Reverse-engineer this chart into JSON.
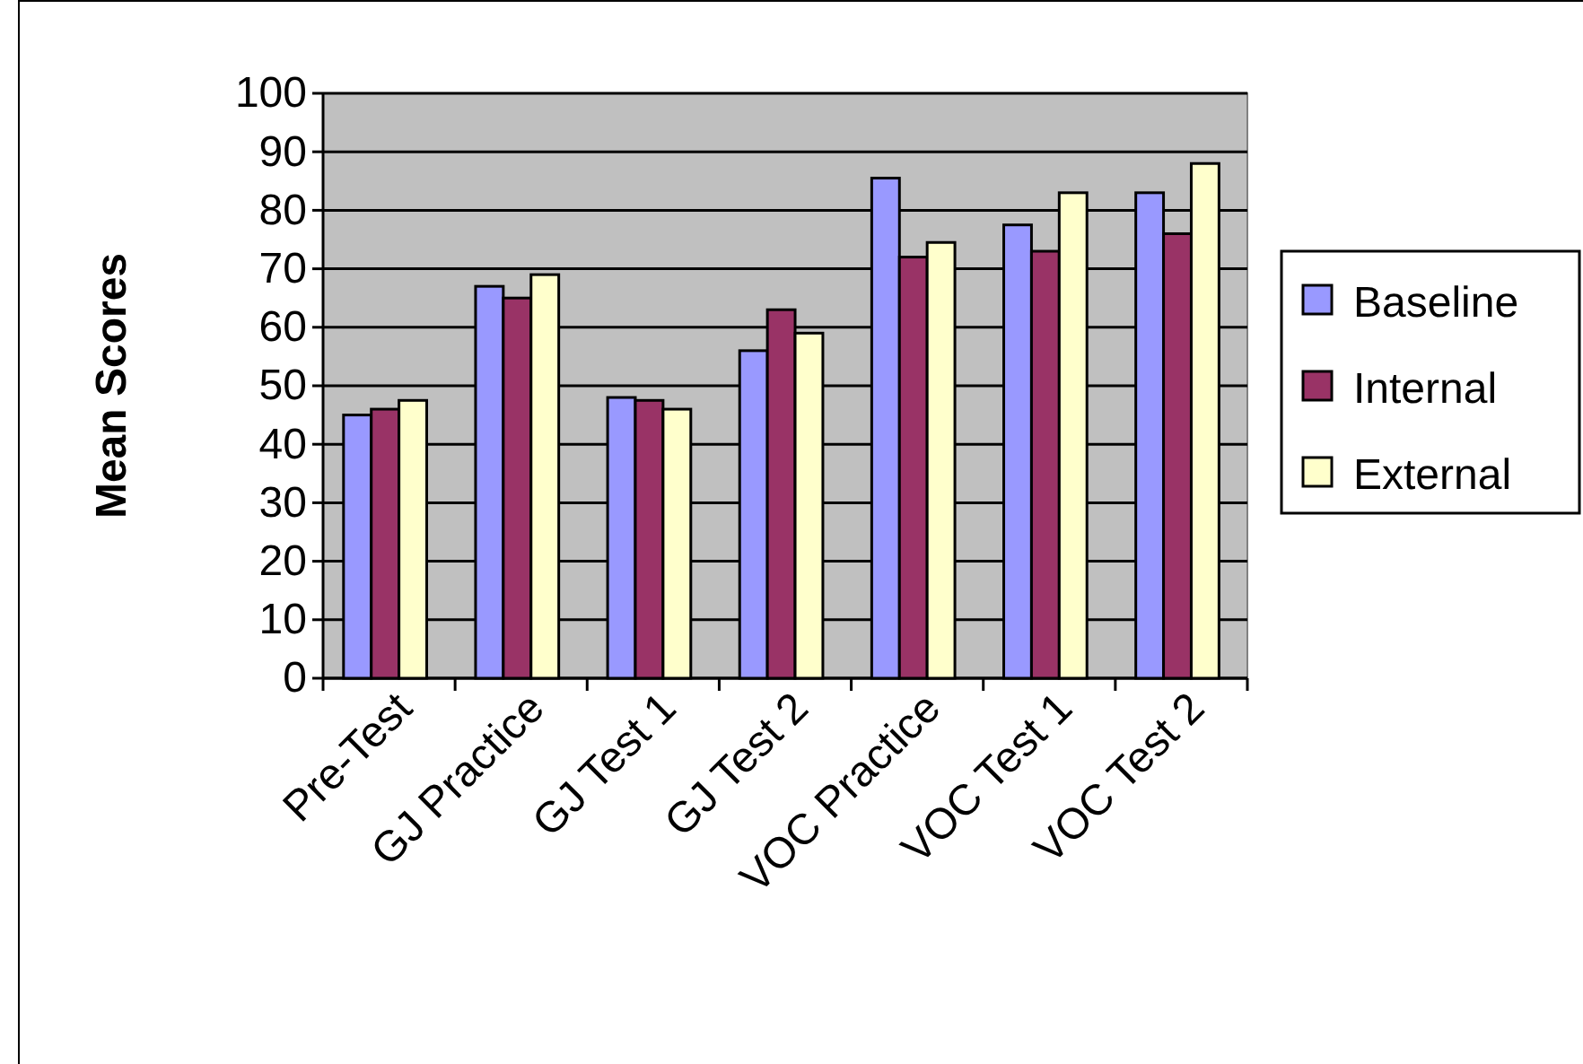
{
  "chart_data": {
    "type": "bar",
    "ylabel": "Mean Scores",
    "categories": [
      "Pre-Test",
      "GJ Practice",
      "GJ Test 1",
      "GJ Test 2",
      "VOC Practice",
      "VOC Test 1",
      "VOC Test 2"
    ],
    "series": [
      {
        "name": "Baseline",
        "color": "#9999ff",
        "values": [
          45,
          67,
          48,
          56,
          85.5,
          77.5,
          83
        ]
      },
      {
        "name": "Internal",
        "color": "#993366",
        "values": [
          46,
          65,
          47.5,
          63,
          72,
          73,
          76
        ]
      },
      {
        "name": "External",
        "color": "#ffffcc",
        "values": [
          47.5,
          69,
          46,
          59,
          74.5,
          83,
          88
        ]
      }
    ],
    "ylim": [
      0,
      100
    ],
    "yticks": [
      0,
      10,
      20,
      30,
      40,
      50,
      60,
      70,
      80,
      90,
      100
    ],
    "grid": "y",
    "legend": "right"
  }
}
